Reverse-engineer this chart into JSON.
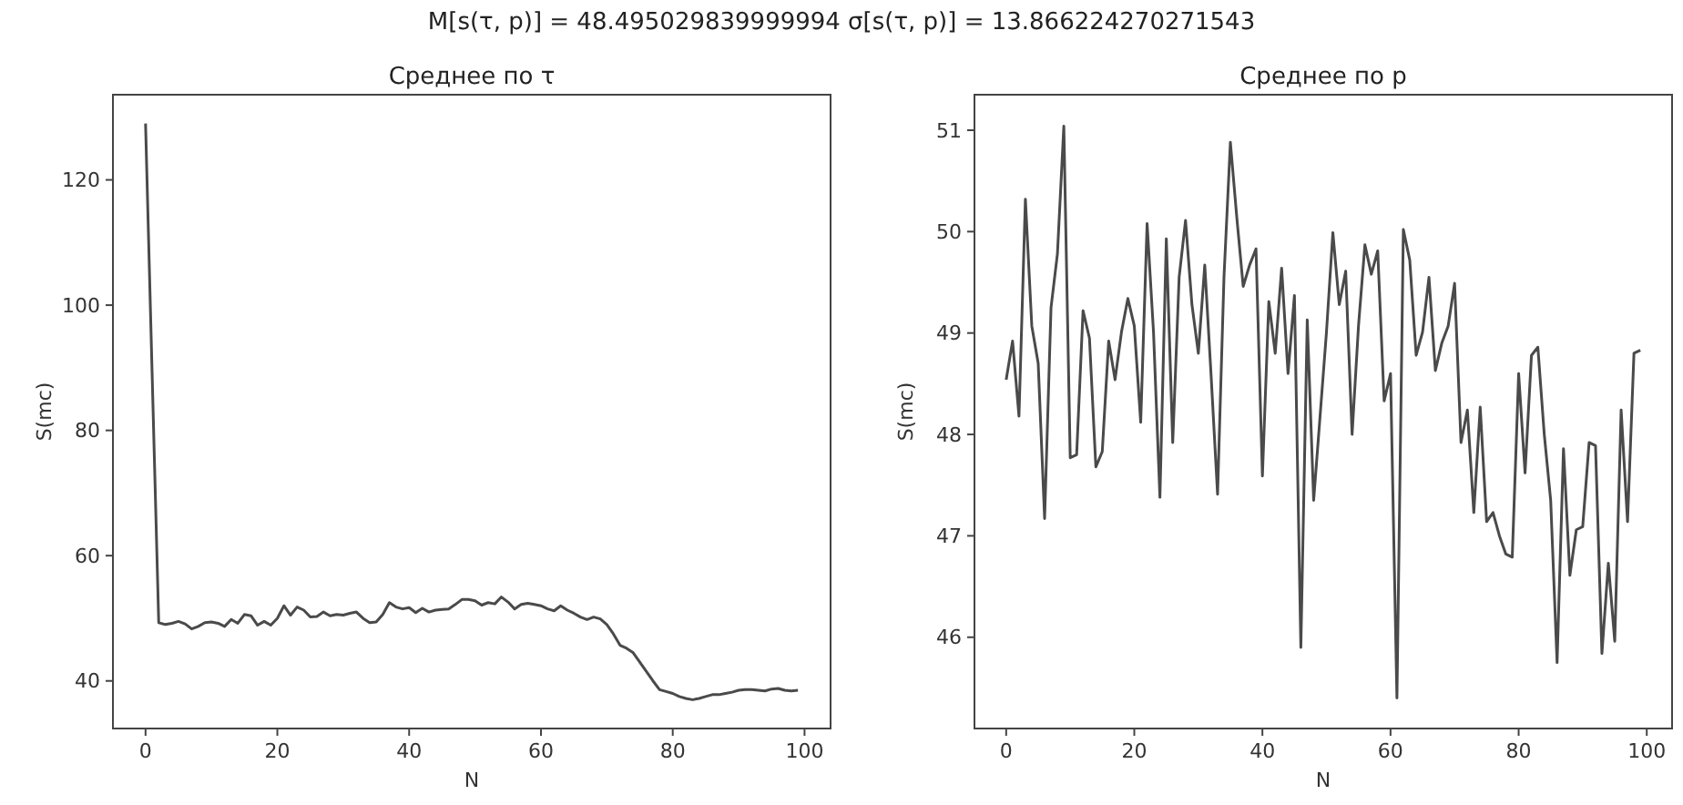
{
  "chart_data": [
    {
      "type": "line",
      "title": "Среднее по τ",
      "xlabel": "N",
      "ylabel": "S(mc)",
      "annotations": [
        "M[s(τ, p)] = 48.495029839999994 σ[s(τ, p)] = 13.866224270271543"
      ],
      "x": [
        0,
        1,
        2,
        3,
        4,
        5,
        6,
        7,
        8,
        9,
        10,
        11,
        12,
        13,
        14,
        15,
        16,
        17,
        18,
        19,
        20,
        21,
        22,
        23,
        24,
        25,
        26,
        27,
        28,
        29,
        30,
        31,
        32,
        33,
        34,
        35,
        36,
        37,
        38,
        39,
        40,
        41,
        42,
        43,
        44,
        45,
        46,
        47,
        48,
        49,
        50,
        51,
        52,
        53,
        54,
        55,
        56,
        57,
        58,
        59,
        60,
        61,
        62,
        63,
        64,
        65,
        66,
        67,
        68,
        69,
        70,
        71,
        72,
        73,
        74,
        75,
        76,
        77,
        78,
        79,
        80,
        81,
        82,
        83,
        84,
        85,
        86,
        87,
        88,
        89,
        90,
        91,
        92,
        93,
        94,
        95,
        96,
        97,
        98,
        99
      ],
      "series": [
        {
          "color": "#4a4a4a",
          "values": [
            129,
            89,
            49.3,
            49,
            49.2,
            49.5,
            49.1,
            48.3,
            48.7,
            49.3,
            49.4,
            49.2,
            48.7,
            49.8,
            49.2,
            50.6,
            50.4,
            48.9,
            49.5,
            48.9,
            50,
            52,
            50.5,
            51.8,
            51.3,
            50.2,
            50.3,
            51,
            50.4,
            50.6,
            50.5,
            50.8,
            51,
            50,
            49.3,
            49.4,
            50.6,
            52.5,
            51.8,
            51.5,
            51.7,
            50.9,
            51.6,
            51,
            51.3,
            51.4,
            51.5,
            52.2,
            53,
            53,
            52.8,
            52.1,
            52.5,
            52.3,
            53.4,
            52.6,
            51.5,
            52.2,
            52.4,
            52.2,
            52,
            51.5,
            51.2,
            52,
            51.3,
            50.8,
            50.2,
            49.8,
            50.2,
            49.9,
            49,
            47.5,
            45.7,
            45.2,
            44.5,
            43,
            41.5,
            40,
            38.6,
            38.3,
            38,
            37.5,
            37.2,
            37,
            37.2,
            37.5,
            37.8,
            37.8,
            38,
            38.2,
            38.5,
            38.6,
            38.6,
            38.5,
            38.4,
            38.7,
            38.8,
            38.5,
            38.4,
            38.5
          ]
        }
      ],
      "xlim": [
        -4.95,
        103.95
      ],
      "xticks": [
        0,
        20,
        40,
        60,
        80,
        100
      ],
      "ylim": [
        32.4,
        133.6
      ],
      "yticks": [
        40,
        60,
        80,
        100,
        120
      ]
    },
    {
      "type": "line",
      "title": "Среднее по p",
      "xlabel": "N",
      "ylabel": "S(mc)",
      "x": [
        0,
        1,
        2,
        3,
        4,
        5,
        6,
        7,
        8,
        9,
        10,
        11,
        12,
        13,
        14,
        15,
        16,
        17,
        18,
        19,
        20,
        21,
        22,
        23,
        24,
        25,
        26,
        27,
        28,
        29,
        30,
        31,
        32,
        33,
        34,
        35,
        36,
        37,
        38,
        39,
        40,
        41,
        42,
        43,
        44,
        45,
        46,
        47,
        48,
        49,
        50,
        51,
        52,
        53,
        54,
        55,
        56,
        57,
        58,
        59,
        60,
        61,
        62,
        63,
        64,
        65,
        66,
        67,
        68,
        69,
        70,
        71,
        72,
        73,
        74,
        75,
        76,
        77,
        78,
        79,
        80,
        81,
        82,
        83,
        84,
        85,
        86,
        87,
        88,
        89,
        90,
        91,
        92,
        93,
        94,
        95,
        96,
        97,
        98,
        99
      ],
      "series": [
        {
          "color": "#4a4a4a",
          "values": [
            48.54,
            48.92,
            48.18,
            50.32,
            49.07,
            48.7,
            47.17,
            49.25,
            49.78,
            51.04,
            47.77,
            47.8,
            49.22,
            48.95,
            47.68,
            47.83,
            48.92,
            48.54,
            49.01,
            49.34,
            49.07,
            48.12,
            50.08,
            49.01,
            47.38,
            49.93,
            47.92,
            49.55,
            50.11,
            49.28,
            48.8,
            49.67,
            48.57,
            47.41,
            49.55,
            50.88,
            50.14,
            49.46,
            49.67,
            49.83,
            47.59,
            49.31,
            48.8,
            49.64,
            48.6,
            49.37,
            45.9,
            49.13,
            47.35,
            48.18,
            49.01,
            49.99,
            49.28,
            49.61,
            48.0,
            49.07,
            49.87,
            49.58,
            49.81,
            48.33,
            48.6,
            45.4,
            50.02,
            49.72,
            48.78,
            49.01,
            49.55,
            48.63,
            48.9,
            49.07,
            49.49,
            47.92,
            48.24,
            47.23,
            48.27,
            47.14,
            47.23,
            47.0,
            46.82,
            46.79,
            48.6,
            47.62,
            48.78,
            48.86,
            48.0,
            47.35,
            45.75,
            47.86,
            46.61,
            47.06,
            47.09,
            47.92,
            47.89,
            45.84,
            46.73,
            45.96,
            48.24,
            47.14,
            48.8,
            48.83
          ]
        }
      ],
      "xlim": [
        -4.95,
        103.95
      ],
      "xticks": [
        0,
        20,
        40,
        60,
        80,
        100
      ],
      "ylim": [
        45.1,
        51.35
      ],
      "yticks": [
        46,
        47,
        48,
        49,
        50,
        51
      ]
    }
  ]
}
